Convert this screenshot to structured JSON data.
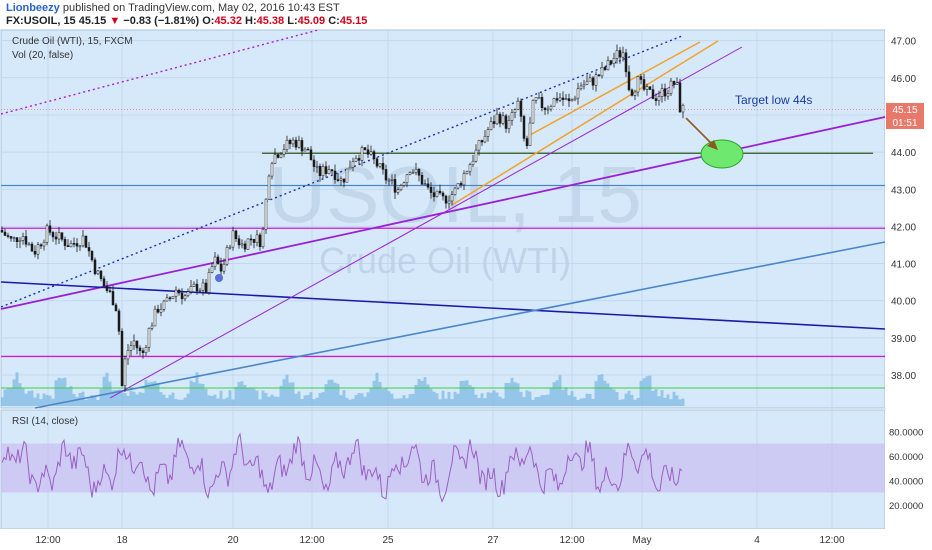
{
  "header": {
    "author": "Lionbeezy",
    "published": "published on TradingView.com, May 02, 2016 10:43 EST",
    "symbol": "FX:USOIL, 15",
    "last": "45.15",
    "arrow": "▼",
    "change": "−0.83 (−1.81%)",
    "o_label": "O:",
    "o_value": "45.32",
    "h_label": "H:",
    "h_value": "45.38",
    "l_label": "L:",
    "l_value": "45.09",
    "c_label": "C:",
    "c_value": "45.15"
  },
  "main_pane": {
    "title": "Crude Oil (WTI), 15, FXCM",
    "volume_label": "Vol (20, false)",
    "watermark_symbol": "USOIL, 15",
    "watermark_name": "Crude Oil (WTI)",
    "annotation": "Target low 44s",
    "price_tag": "45.15",
    "timer_tag": "01:51"
  },
  "rsi_pane": {
    "label": "RSI (14, close)"
  },
  "colors": {
    "background": "#d6e9fb",
    "purple_line": "#9b1fd6",
    "navy_line": "#1a1aa6",
    "blue_line": "#4a86c8",
    "magenta_line": "#d21ad2",
    "orange_line": "#f2a12b",
    "green_ellipse": "#6ee86e",
    "rsi_band": "#c9c0f2",
    "rsi_line": "#9a5fc2"
  },
  "chart_data": [
    {
      "type": "candlestick",
      "title": "Crude Oil (WTI), 15, FXCM",
      "x_tick_labels": [
        "12:00",
        "18",
        "20",
        "12:00",
        "25",
        "27",
        "12:00",
        "May",
        "4",
        "12:00"
      ],
      "y_tick_labels": [
        "38.00",
        "39.00",
        "40.00",
        "41.00",
        "42.00",
        "43.00",
        "44.00",
        "45.00",
        "46.00",
        "47.00"
      ],
      "ylim": [
        37.2,
        47.3
      ],
      "last_price": 45.15,
      "price_path": [
        [
          0,
          41.9
        ],
        [
          12,
          41.6
        ],
        [
          22,
          41.8
        ],
        [
          34,
          41.3
        ],
        [
          48,
          41.9
        ],
        [
          58,
          41.7
        ],
        [
          70,
          41.5
        ],
        [
          84,
          41.7
        ],
        [
          96,
          40.8
        ],
        [
          104,
          40.4
        ],
        [
          112,
          40.1
        ],
        [
          118,
          39.7
        ],
        [
          122,
          37.7
        ],
        [
          126,
          38.6
        ],
        [
          134,
          38.9
        ],
        [
          142,
          38.5
        ],
        [
          150,
          39.3
        ],
        [
          158,
          39.8
        ],
        [
          166,
          39.9
        ],
        [
          176,
          40.3
        ],
        [
          186,
          40.1
        ],
        [
          196,
          40.4
        ],
        [
          206,
          40.3
        ],
        [
          214,
          41.1
        ],
        [
          222,
          40.8
        ],
        [
          232,
          41.8
        ],
        [
          242,
          41.5
        ],
        [
          252,
          41.7
        ],
        [
          262,
          41.6
        ],
        [
          270,
          43.8
        ],
        [
          282,
          44.1
        ],
        [
          294,
          44.3
        ],
        [
          306,
          44.1
        ],
        [
          318,
          43.4
        ],
        [
          330,
          43.6
        ],
        [
          342,
          43.2
        ],
        [
          354,
          43.9
        ],
        [
          366,
          44.0
        ],
        [
          376,
          43.7
        ],
        [
          386,
          43.3
        ],
        [
          398,
          43.0
        ],
        [
          410,
          43.6
        ],
        [
          420,
          43.3
        ],
        [
          430,
          42.9
        ],
        [
          442,
          42.7
        ],
        [
          454,
          42.9
        ],
        [
          466,
          43.5
        ],
        [
          476,
          44.0
        ],
        [
          488,
          44.6
        ],
        [
          498,
          45.0
        ],
        [
          508,
          44.7
        ],
        [
          518,
          45.3
        ],
        [
          526,
          44.0
        ],
        [
          534,
          45.4
        ],
        [
          546,
          45.2
        ],
        [
          558,
          45.5
        ],
        [
          570,
          45.3
        ],
        [
          580,
          45.8
        ],
        [
          592,
          45.9
        ],
        [
          604,
          46.2
        ],
        [
          616,
          46.6
        ],
        [
          624,
          46.7
        ],
        [
          630,
          45.6
        ],
        [
          638,
          45.9
        ],
        [
          646,
          45.6
        ],
        [
          656,
          45.5
        ],
        [
          668,
          45.7
        ],
        [
          676,
          45.9
        ],
        [
          680,
          45.2
        ],
        [
          683,
          45.15
        ]
      ],
      "levels": {
        "green_resistance": 43.97,
        "blue_horizontal": 43.1,
        "magenta_horizontal_upper": 41.95,
        "magenta_horizontal_lower": 38.5,
        "green_volume_line": 37.65
      }
    },
    {
      "type": "line",
      "title": "RSI (14, close)",
      "y_tick_labels": [
        "20.0000",
        "40.0000",
        "60.0000",
        "80.0000"
      ],
      "ylim": [
        10,
        90
      ],
      "band": [
        30,
        70
      ]
    }
  ]
}
